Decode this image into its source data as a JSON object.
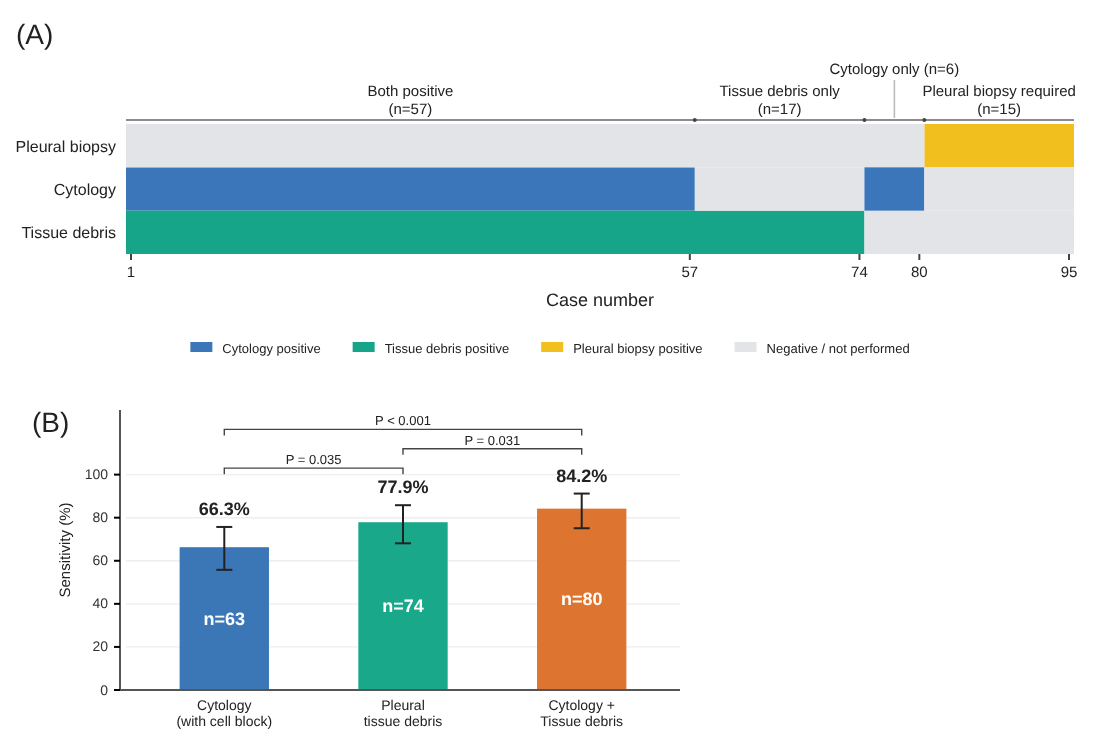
{
  "chart_data": [
    {
      "type": "bar",
      "orientation": "horizontal",
      "title": "(A)",
      "xlabel": "Case number",
      "categories": [
        "Pleural biopsy",
        "Cytology",
        "Tissue debris"
      ],
      "xlim": [
        0.5,
        95.5
      ],
      "xticks": [
        1,
        57,
        74,
        80,
        95
      ],
      "series": [
        {
          "name": "Cytology positive",
          "color": "#3a76b9",
          "values": [
            null,
            57,
            null
          ],
          "base": [
            null,
            0.5,
            null
          ]
        },
        {
          "name": "Tissue debris positive",
          "color": "#17a589",
          "values": [
            null,
            null,
            74
          ],
          "base": [
            null,
            null,
            0.5
          ]
        },
        {
          "name": "Pleural biopsy positive",
          "color": "#f2c01e",
          "values": [
            15,
            null,
            null
          ],
          "base": [
            80.5,
            null,
            null
          ]
        },
        {
          "name": "Negative / not performed",
          "color": "#e3e4e8",
          "values": [
            80,
            17,
            21
          ],
          "base": [
            0.5,
            57.5,
            74.5
          ]
        },
        {
          "color": "#3a76b9",
          "values": [
            null,
            6,
            null
          ],
          "base": [
            null,
            74.5,
            null
          ]
        },
        {
          "color": "#e3e4e8",
          "values": [
            null,
            15,
            null
          ],
          "base": [
            null,
            80.5,
            null
          ]
        }
      ],
      "legend": "bottom",
      "annotations": [
        "Both positive\n(n=57)",
        "Tissue debris only\n(n=17)",
        "Cytology only (n=6)",
        "Pleural biopsy required\n(n=15)"
      ]
    },
    {
      "type": "bar",
      "title": "(B)",
      "ylabel": "Sensitivity (%)",
      "categories": [
        "Cytology\n(with cell block)",
        "Pleural\ntissue debris",
        "Cytology +\nTissue debris"
      ],
      "values": [
        66.3,
        77.9,
        84.2
      ],
      "colors": [
        "#3b76b7",
        "#1aa88b",
        "#dd7530"
      ],
      "errors": [
        [
          55.8,
          75.7
        ],
        [
          68.1,
          85.8
        ],
        [
          75.1,
          91.2
        ]
      ],
      "value_labels": [
        "66.3%",
        "77.9%",
        "84.2%"
      ],
      "ylim": [
        0,
        130
      ],
      "yticks": [
        0,
        20,
        40,
        60,
        80,
        100
      ],
      "grid": "y",
      "annotations": [
        "n=63",
        "n=74",
        "n=80",
        "P = 0.035",
        "P = 0.031",
        "P < 0.001"
      ]
    }
  ]
}
